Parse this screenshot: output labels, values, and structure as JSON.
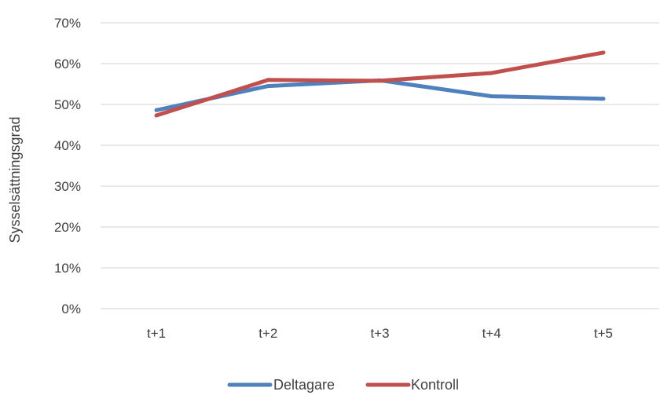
{
  "chart_data": {
    "type": "line",
    "categories": [
      "t+1",
      "t+2",
      "t+3",
      "t+4",
      "t+5"
    ],
    "series": [
      {
        "name": "Deltagare",
        "color": "#4F81BD",
        "values": [
          48.6,
          54.5,
          55.9,
          52.0,
          51.4
        ]
      },
      {
        "name": "Kontroll",
        "color": "#C0504D",
        "values": [
          47.3,
          56.0,
          55.8,
          57.7,
          62.7
        ]
      }
    ],
    "ylabel": "Sysselsättningsgrad",
    "xlabel": "",
    "ylim": [
      0,
      70
    ],
    "yticks": [
      "0%",
      "10%",
      "20%",
      "30%",
      "40%",
      "50%",
      "60%",
      "70%"
    ],
    "grid": true,
    "legend_position": "bottom",
    "gridline_color": "#D9D9D9"
  }
}
